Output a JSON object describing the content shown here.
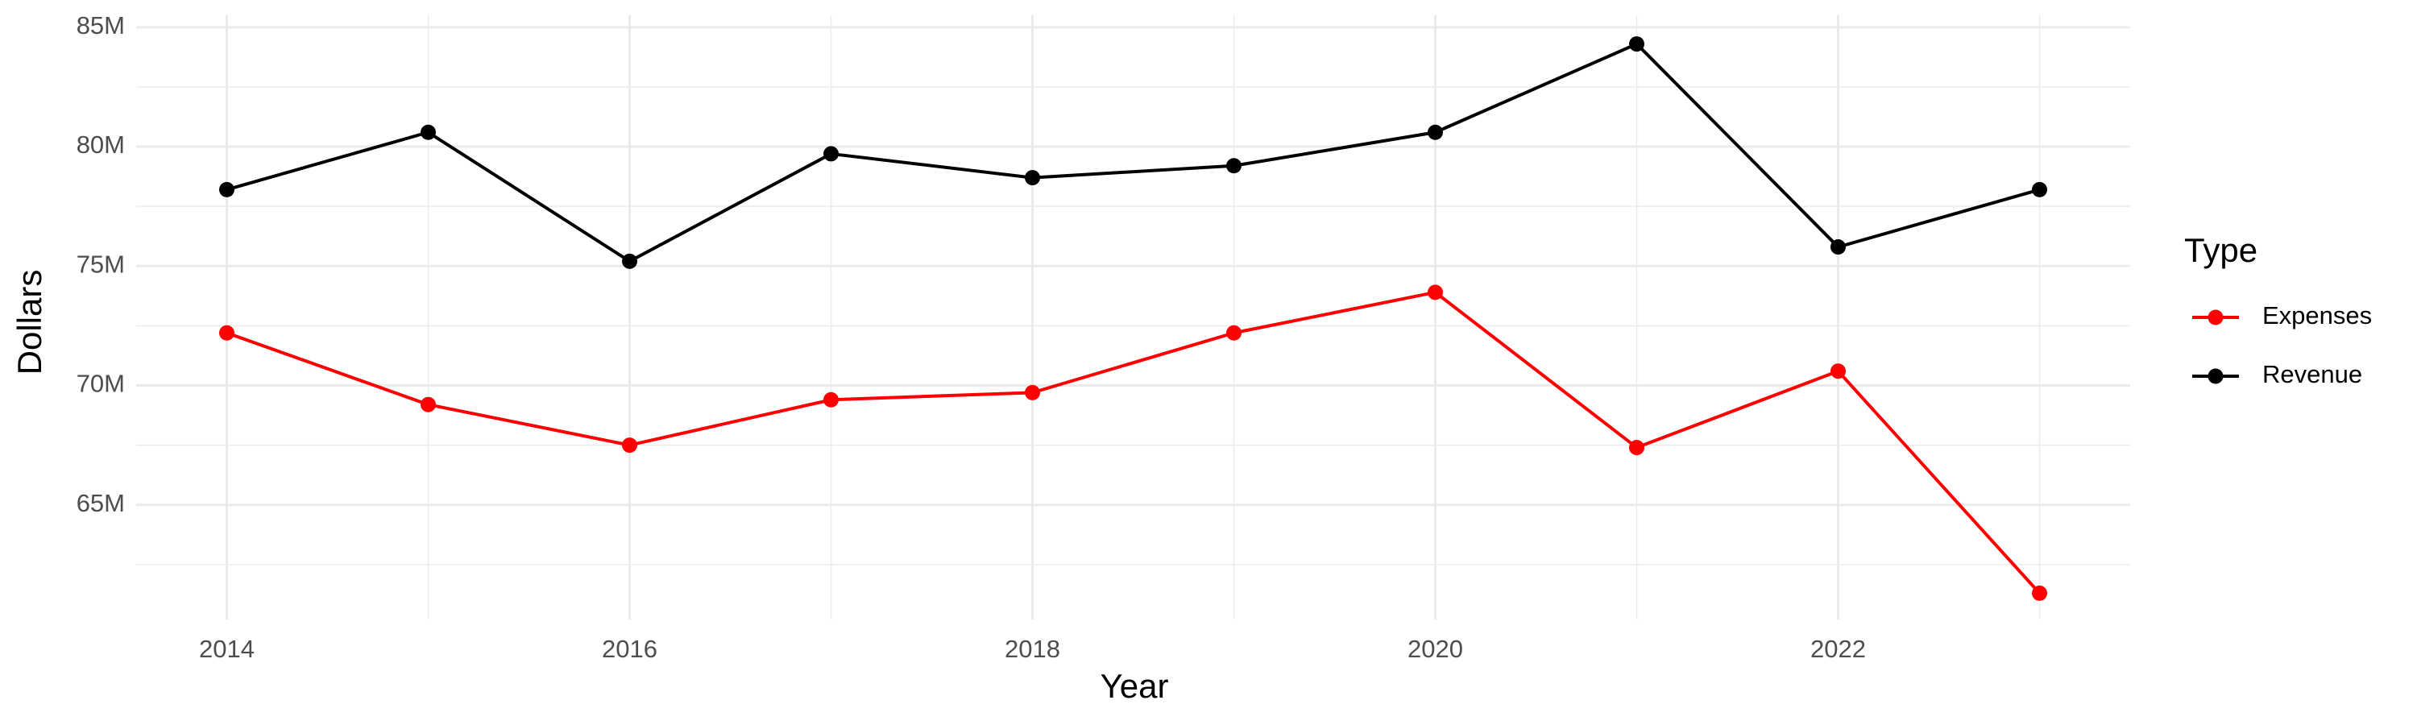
{
  "chart_data": {
    "type": "line",
    "x_label": "Year",
    "y_label": "Dollars",
    "x": [
      2014,
      2015,
      2016,
      2017,
      2018,
      2019,
      2020,
      2021,
      2022,
      2023
    ],
    "series": [
      {
        "name": "Expenses",
        "color": "#ff0000",
        "values": [
          72200000,
          69200000,
          67500000,
          69400000,
          69700000,
          72200000,
          73900000,
          67400000,
          70600000,
          61300000
        ]
      },
      {
        "name": "Revenue",
        "color": "#000000",
        "values": [
          78200000,
          80600000,
          75200000,
          79700000,
          78700000,
          79200000,
          80600000,
          84300000,
          75800000,
          78200000
        ]
      }
    ],
    "xlim": [
      2013.55,
      2023.45
    ],
    "xticks": [
      2014,
      2016,
      2018,
      2020,
      2022
    ],
    "ylim": [
      60200000,
      85500000
    ],
    "yticks": [
      {
        "value": 65000000,
        "label": "65M"
      },
      {
        "value": 70000000,
        "label": "70M"
      },
      {
        "value": 75000000,
        "label": "75M"
      },
      {
        "value": 80000000,
        "label": "80M"
      },
      {
        "value": 85000000,
        "label": "85M"
      }
    ],
    "grid": true,
    "legend_title": "Type",
    "legend_position": "right"
  }
}
